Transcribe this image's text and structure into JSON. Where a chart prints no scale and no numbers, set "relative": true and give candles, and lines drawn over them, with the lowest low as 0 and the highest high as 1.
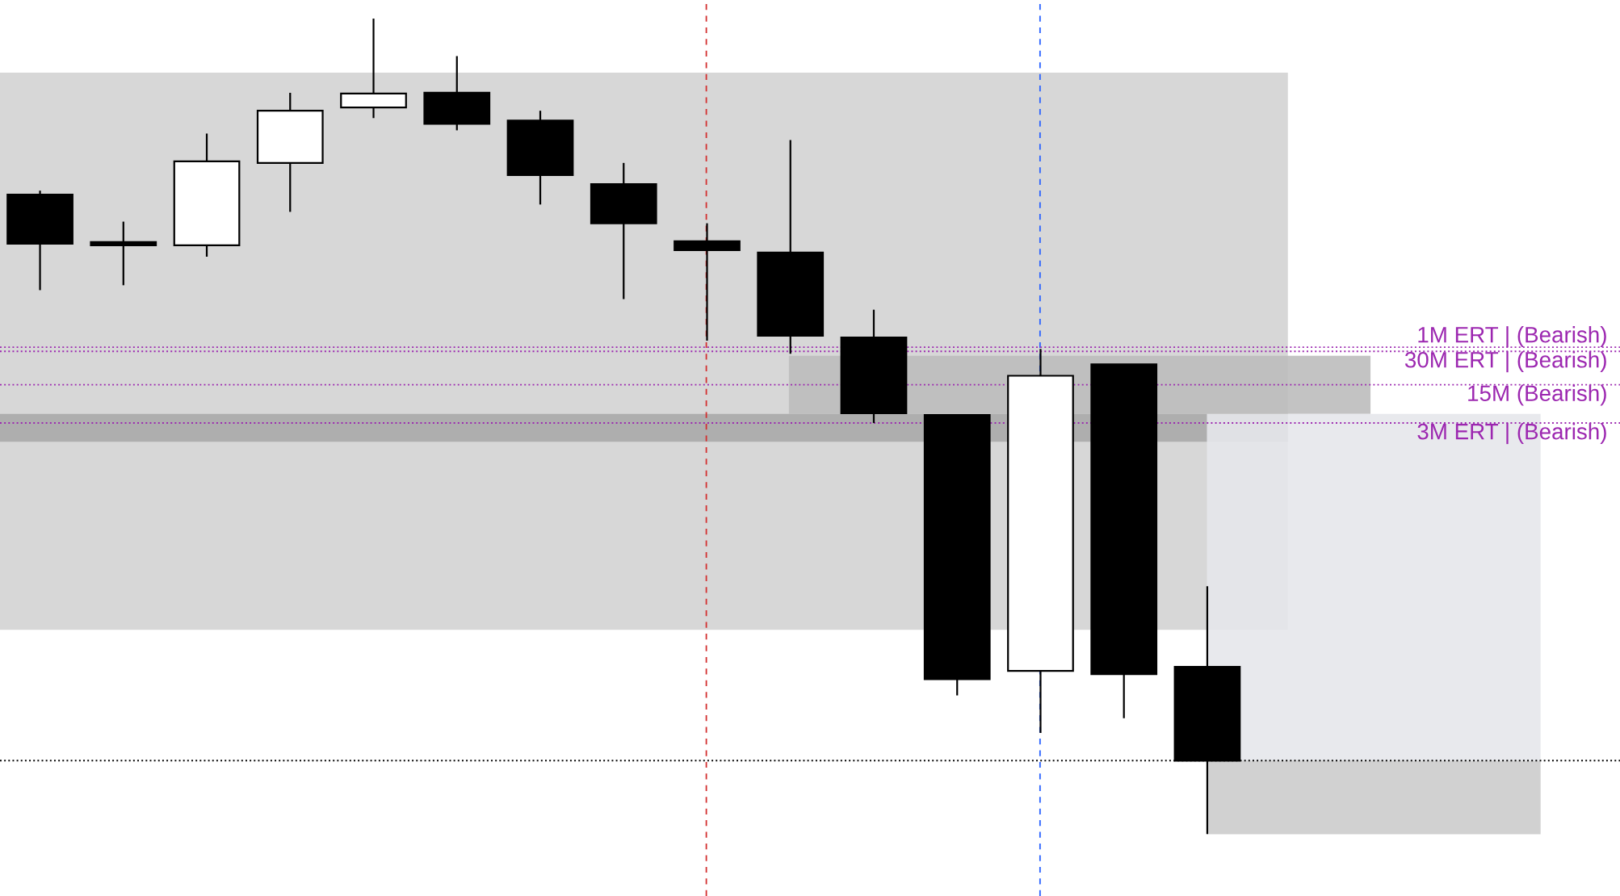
{
  "chart_data": {
    "type": "candlestick",
    "relative": true,
    "categories": [
      null,
      null,
      null,
      null,
      null,
      null,
      null,
      null,
      null,
      null,
      null,
      null,
      null,
      null,
      null
    ],
    "ohlc": [
      [
        0.784,
        0.789,
        0.667,
        0.724
      ],
      [
        0.722,
        0.751,
        0.673,
        0.722
      ],
      [
        0.722,
        0.859,
        0.708,
        0.825
      ],
      [
        0.823,
        0.909,
        0.763,
        0.887
      ],
      [
        0.891,
        1.0,
        0.878,
        0.908
      ],
      [
        0.909,
        0.954,
        0.863,
        0.871
      ],
      [
        0.875,
        0.887,
        0.772,
        0.808
      ],
      [
        0.797,
        0.823,
        0.656,
        0.749
      ],
      [
        0.727,
        0.749,
        0.605,
        0.716
      ],
      [
        0.713,
        0.851,
        0.589,
        0.611
      ],
      [
        0.609,
        0.643,
        0.504,
        0.516
      ],
      [
        0.514,
        0.514,
        0.17,
        0.19
      ],
      [
        0.2,
        0.595,
        0.124,
        0.562
      ],
      [
        0.576,
        0.576,
        0.142,
        0.196
      ],
      [
        0.205,
        0.304,
        0.0,
        0.09
      ]
    ],
    "colors": [
      "#000000",
      "#000000",
      "#ffffff",
      "#ffffff",
      "#ffffff",
      "#000000",
      "#000000",
      "#000000",
      "#000000",
      "#000000",
      "#000000",
      "#000000",
      "#ffffff",
      "#000000",
      "#000000"
    ],
    "ref_lines": [
      {
        "axis": "y",
        "value": 0.597,
        "label": "1M ERT | (Bearish)",
        "color": "#9c27b0",
        "line_style": "dotted"
      },
      {
        "axis": "y",
        "value": 0.592,
        "label": "30M ERT | (Bearish)",
        "color": "#9c27b0",
        "line_style": "dotted"
      },
      {
        "axis": "y",
        "value": 0.551,
        "label": "15M (Bearish)",
        "color": "#9c27b0",
        "line_style": "dotted"
      },
      {
        "axis": "y",
        "value": 0.504,
        "label": "3M ERT | (Bearish)",
        "color": "#9c27b0",
        "line_style": "dotted"
      },
      {
        "axis": "y",
        "value": 0.09,
        "label": null,
        "color": "#000000",
        "line_style": "dotted"
      }
    ],
    "legend": false
  }
}
